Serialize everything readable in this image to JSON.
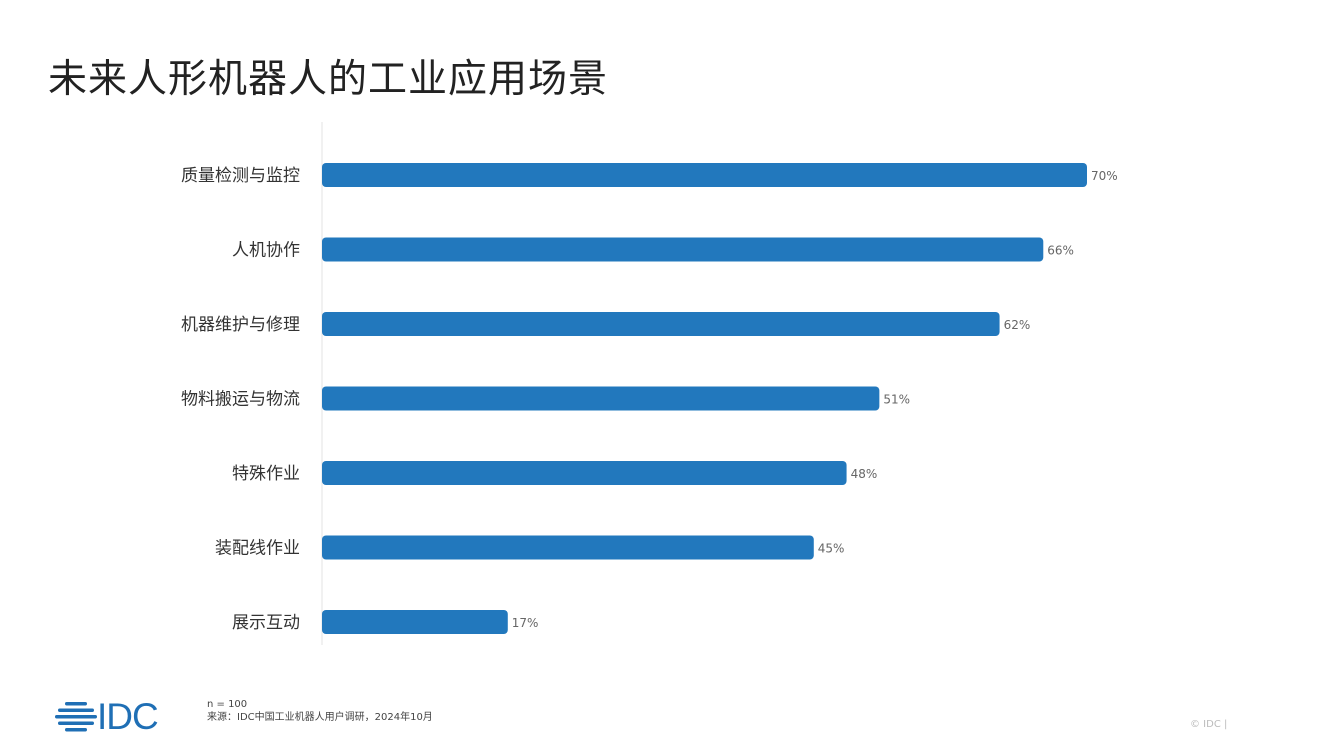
{
  "title": "未来人形机器人的工业应用场景",
  "chart_data": {
    "type": "bar",
    "orientation": "horizontal",
    "title": "未来人形机器人的工业应用场景",
    "categories": [
      "质量检测与监控",
      "人机协作",
      "机器维护与修理",
      "物料搬运与物流",
      "特殊作业",
      "装配线作业",
      "展示互动"
    ],
    "values": [
      70,
      66,
      62,
      51,
      48,
      45,
      17
    ],
    "labels": [
      "70%",
      "66%",
      "62%",
      "51%",
      "48%",
      "45%",
      "17%"
    ],
    "unit": "%",
    "xlabel": "",
    "ylabel": "",
    "xlim": [
      0,
      70
    ],
    "grid": false,
    "color": "#2278bd"
  },
  "footer": {
    "sample": "n = 100",
    "source": "来源：IDC中国工业机器人用户调研，2024年10月",
    "logo": "IDC",
    "copyright": "© IDC |"
  }
}
